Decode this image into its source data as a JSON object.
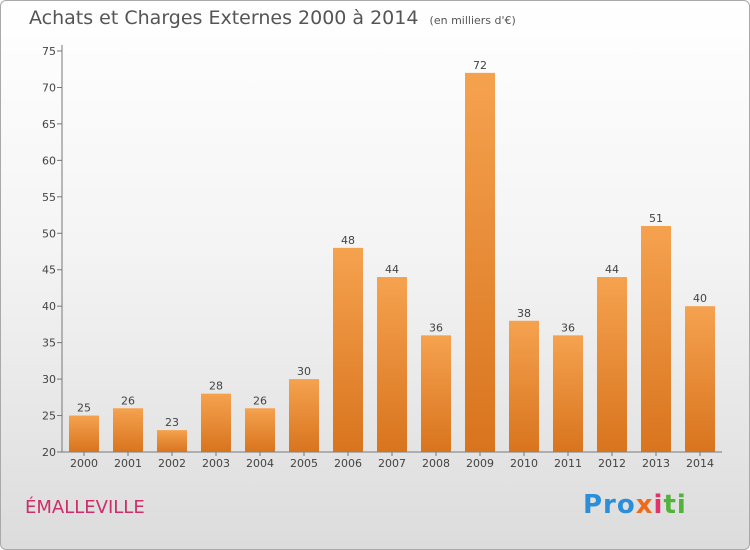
{
  "chart_data": {
    "type": "bar",
    "title": "Achats et Charges Externes 2000 à 2014",
    "subtitle": "(en milliers d'€)",
    "categories": [
      "2000",
      "2001",
      "2002",
      "2003",
      "2004",
      "2005",
      "2006",
      "2007",
      "2008",
      "2009",
      "2010",
      "2011",
      "2012",
      "2013",
      "2014"
    ],
    "values": [
      25,
      26,
      23,
      28,
      26,
      30,
      48,
      44,
      36,
      72,
      38,
      36,
      44,
      51,
      40
    ],
    "ylim": [
      20,
      75
    ],
    "yticks": [
      20,
      25,
      30,
      35,
      40,
      45,
      50,
      55,
      60,
      65,
      70,
      75
    ],
    "grid": false,
    "bar_color": "#f29a45"
  },
  "footer": {
    "commune": "ÉMALLEVILLE",
    "logo": [
      "Pro",
      "x",
      "i",
      "ti"
    ]
  }
}
